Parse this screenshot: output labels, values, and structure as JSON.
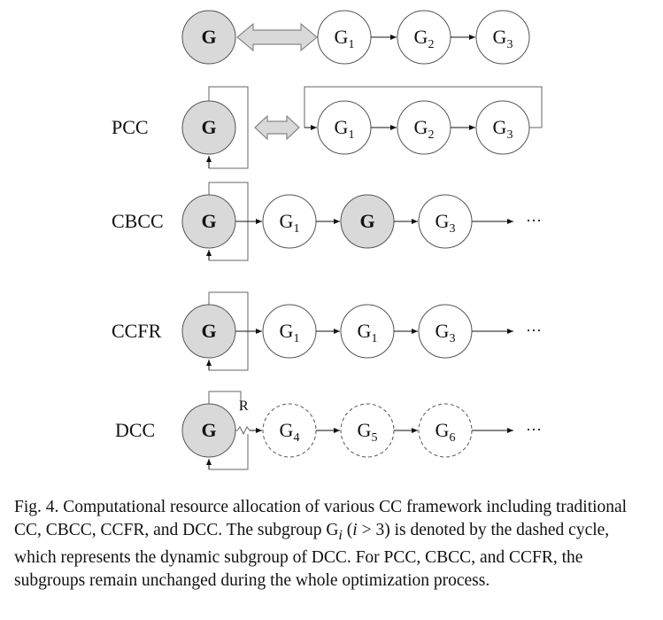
{
  "rows": [
    {
      "label": "",
      "variant": "cc",
      "nodes": [
        {
          "text": "G",
          "sub": "",
          "style": "main"
        },
        {
          "text": "G",
          "sub": "1",
          "style": "solid"
        },
        {
          "text": "G",
          "sub": "2",
          "style": "solid"
        },
        {
          "text": "G",
          "sub": "3",
          "style": "solid"
        }
      ],
      "ellipsis": ""
    },
    {
      "label": "PCC",
      "variant": "pcc",
      "nodes": [
        {
          "text": "G",
          "sub": "",
          "style": "main"
        },
        {
          "text": "G",
          "sub": "1",
          "style": "solid"
        },
        {
          "text": "G",
          "sub": "2",
          "style": "solid"
        },
        {
          "text": "G",
          "sub": "3",
          "style": "solid"
        }
      ],
      "ellipsis": ""
    },
    {
      "label": "CBCC",
      "variant": "cbcc",
      "nodes": [
        {
          "text": "G",
          "sub": "",
          "style": "main"
        },
        {
          "text": "G",
          "sub": "1",
          "style": "solid"
        },
        {
          "text": "G",
          "sub": "",
          "style": "main"
        },
        {
          "text": "G",
          "sub": "3",
          "style": "solid"
        }
      ],
      "ellipsis": "···"
    },
    {
      "label": "CCFR",
      "variant": "ccfr",
      "nodes": [
        {
          "text": "G",
          "sub": "",
          "style": "main"
        },
        {
          "text": "G",
          "sub": "1",
          "style": "solid"
        },
        {
          "text": "G",
          "sub": "1",
          "style": "solid"
        },
        {
          "text": "G",
          "sub": "3",
          "style": "solid"
        }
      ],
      "ellipsis": "···"
    },
    {
      "label": "DCC",
      "variant": "dcc",
      "nodes": [
        {
          "text": "G",
          "sub": "",
          "style": "main"
        },
        {
          "text": "G",
          "sub": "4",
          "style": "dashed"
        },
        {
          "text": "G",
          "sub": "5",
          "style": "dashed"
        },
        {
          "text": "G",
          "sub": "6",
          "style": "dashed"
        }
      ],
      "ellipsis": "···",
      "r_label": "R"
    }
  ],
  "caption": {
    "prefix": "Fig. 4.   Computational resource allocation of various CC framework including traditional CC, CBCC, CCFR, and DCC. The subgroup G",
    "sub": "i",
    "paren_open": " (",
    "var": "i",
    "cond": " > 3)",
    "suffix": " is denoted by the dashed cycle, which represents the dynamic subgroup of DCC. For PCC, CBCC, and CCFR, the subgroups remain unchanged during the whole optimization process."
  },
  "colors": {
    "main_fill": "#d9d9d9",
    "node_fill": "#ffffff",
    "stroke": "#555555",
    "double_arrow_fill": "#d9d9d9"
  }
}
